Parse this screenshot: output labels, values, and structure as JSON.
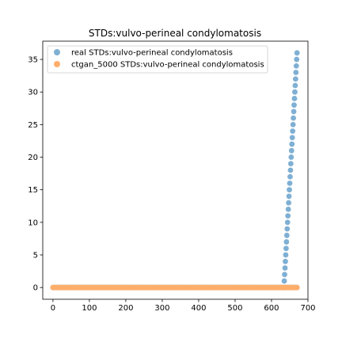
{
  "chart_data": {
    "type": "scatter",
    "title": "STDs:vulvo-perineal condylomatosis",
    "xlabel": "",
    "ylabel": "",
    "xlim": [
      -28,
      700
    ],
    "ylim": [
      -1.8,
      37.8
    ],
    "xticks": [
      0,
      100,
      200,
      300,
      400,
      500,
      600,
      700
    ],
    "yticks": [
      0,
      5,
      10,
      15,
      20,
      25,
      30,
      35
    ],
    "grid": false,
    "legend_position": "top-left",
    "series": [
      {
        "name": "real STDs:vulvo-perineal condylomatosis",
        "color": "#7fb0d4",
        "zero_segment": {
          "x_start": 0,
          "x_end": 634,
          "step": 3,
          "y": 0
        },
        "rise_segment": {
          "x_start": 634,
          "x_end": 670,
          "y_start": 0,
          "y_end": 36
        },
        "tail_segment": {
          "x_start": 634,
          "x_end": 670,
          "step": 3,
          "y": 0
        }
      },
      {
        "name": "ctgan_5000 STDs:vulvo-perineal condylomatosis",
        "color": "#ffae6b",
        "zero_segment": {
          "x_start": 0,
          "x_end": 670,
          "step": 2,
          "y": 0
        }
      }
    ]
  }
}
